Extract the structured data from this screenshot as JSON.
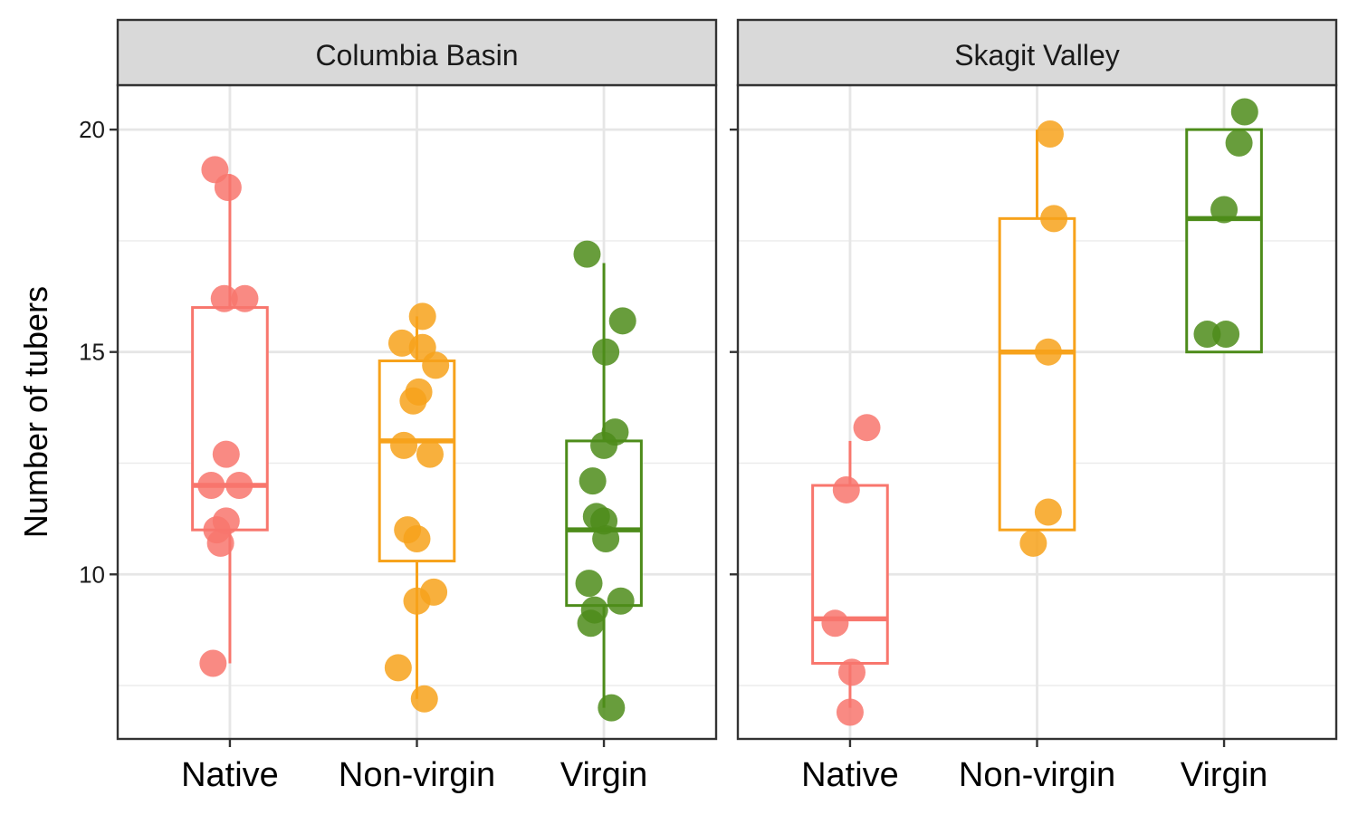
{
  "chart_data": {
    "type": "boxplot",
    "ylabel": "Number of tubers",
    "xlabel": "",
    "ylim": [
      6.3,
      21.0
    ],
    "y_ticks": [
      10,
      15,
      20
    ],
    "grid": true,
    "categories": [
      "Native",
      "Non-virgin",
      "Virgin"
    ],
    "colors": {
      "Native": "#f8766d",
      "Non-virgin": "#f7a21b",
      "Virgin": "#4d8c1a"
    },
    "panels": [
      {
        "name": "Columbia Basin",
        "groups": [
          {
            "category": "Native",
            "box": {
              "whisker_low": 8,
              "q1": 11,
              "median": 12,
              "q3": 16,
              "whisker_high": 19
            },
            "points": [
              {
                "x_offset": -0.08,
                "y": 19.1
              },
              {
                "x_offset": -0.01,
                "y": 18.7
              },
              {
                "x_offset": -0.03,
                "y": 16.2
              },
              {
                "x_offset": 0.08,
                "y": 16.2
              },
              {
                "x_offset": -0.02,
                "y": 12.7
              },
              {
                "x_offset": -0.1,
                "y": 12.0
              },
              {
                "x_offset": 0.05,
                "y": 12.0
              },
              {
                "x_offset": -0.02,
                "y": 11.2
              },
              {
                "x_offset": -0.07,
                "y": 11.0
              },
              {
                "x_offset": -0.05,
                "y": 10.7
              },
              {
                "x_offset": -0.09,
                "y": 8.0
              }
            ]
          },
          {
            "category": "Non-virgin",
            "box": {
              "whisker_low": 7.2,
              "q1": 10.3,
              "median": 13.0,
              "q3": 14.8,
              "whisker_high": 15.8
            },
            "points": [
              {
                "x_offset": 0.03,
                "y": 15.8
              },
              {
                "x_offset": -0.08,
                "y": 15.2
              },
              {
                "x_offset": 0.03,
                "y": 15.1
              },
              {
                "x_offset": 0.1,
                "y": 14.7
              },
              {
                "x_offset": 0.01,
                "y": 14.1
              },
              {
                "x_offset": -0.02,
                "y": 13.9
              },
              {
                "x_offset": -0.07,
                "y": 12.9
              },
              {
                "x_offset": 0.07,
                "y": 12.7
              },
              {
                "x_offset": -0.05,
                "y": 11.0
              },
              {
                "x_offset": 0.0,
                "y": 10.8
              },
              {
                "x_offset": 0.09,
                "y": 9.6
              },
              {
                "x_offset": 0.0,
                "y": 9.4
              },
              {
                "x_offset": -0.1,
                "y": 7.9
              },
              {
                "x_offset": 0.04,
                "y": 7.2
              }
            ]
          },
          {
            "category": "Virgin",
            "box": {
              "whisker_low": 7.0,
              "q1": 9.3,
              "median": 11.0,
              "q3": 13.0,
              "whisker_high": 17.0
            },
            "points": [
              {
                "x_offset": -0.09,
                "y": 17.2
              },
              {
                "x_offset": 0.1,
                "y": 15.7
              },
              {
                "x_offset": 0.01,
                "y": 15.0
              },
              {
                "x_offset": 0.06,
                "y": 13.2
              },
              {
                "x_offset": 0.0,
                "y": 12.9
              },
              {
                "x_offset": -0.06,
                "y": 12.1
              },
              {
                "x_offset": -0.04,
                "y": 11.3
              },
              {
                "x_offset": 0.0,
                "y": 11.2
              },
              {
                "x_offset": 0.01,
                "y": 10.8
              },
              {
                "x_offset": -0.08,
                "y": 9.8
              },
              {
                "x_offset": 0.09,
                "y": 9.4
              },
              {
                "x_offset": -0.05,
                "y": 9.2
              },
              {
                "x_offset": -0.07,
                "y": 8.9
              },
              {
                "x_offset": 0.04,
                "y": 7.0
              }
            ]
          }
        ]
      },
      {
        "name": "Skagit Valley",
        "groups": [
          {
            "category": "Native",
            "box": {
              "whisker_low": 7,
              "q1": 8,
              "median": 9,
              "q3": 12,
              "whisker_high": 13
            },
            "points": [
              {
                "x_offset": 0.09,
                "y": 13.3
              },
              {
                "x_offset": -0.02,
                "y": 11.9
              },
              {
                "x_offset": -0.08,
                "y": 8.9
              },
              {
                "x_offset": 0.01,
                "y": 7.8
              },
              {
                "x_offset": 0.0,
                "y": 6.9
              }
            ]
          },
          {
            "category": "Non-virgin",
            "box": {
              "whisker_low": 11,
              "q1": 11,
              "median": 15,
              "q3": 18,
              "whisker_high": 20
            },
            "points": [
              {
                "x_offset": 0.07,
                "y": 19.9
              },
              {
                "x_offset": 0.09,
                "y": 18.0
              },
              {
                "x_offset": 0.06,
                "y": 15.0
              },
              {
                "x_offset": 0.06,
                "y": 11.4
              },
              {
                "x_offset": -0.02,
                "y": 10.7
              }
            ]
          },
          {
            "category": "Virgin",
            "box": {
              "whisker_low": 15,
              "q1": 15,
              "median": 18,
              "q3": 20,
              "whisker_high": 20
            },
            "points": [
              {
                "x_offset": 0.11,
                "y": 20.4
              },
              {
                "x_offset": 0.08,
                "y": 19.7
              },
              {
                "x_offset": 0.0,
                "y": 18.2
              },
              {
                "x_offset": -0.09,
                "y": 15.4
              },
              {
                "x_offset": 0.01,
                "y": 15.4
              }
            ]
          }
        ]
      }
    ]
  }
}
